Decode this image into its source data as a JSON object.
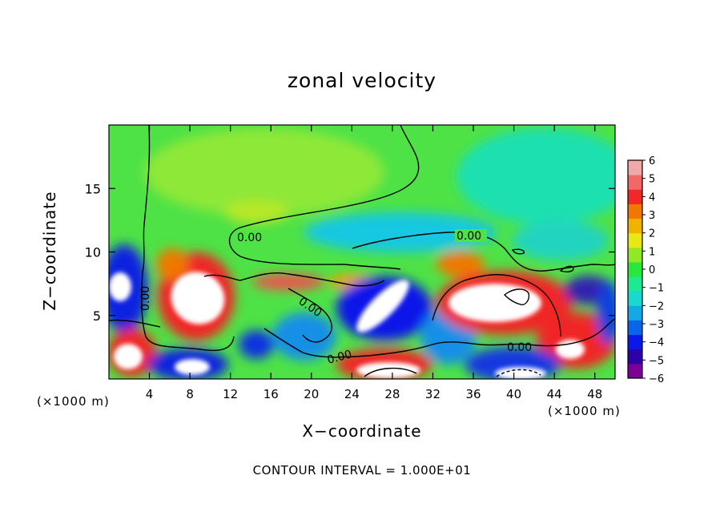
{
  "chart_data": {
    "type": "heatmap",
    "title": "zonal velocity",
    "xlabel": "X−coordinate",
    "ylabel": "Z−coordinate",
    "x_unit_left": "(×1000 m)",
    "x_unit_right": "(×1000 m)",
    "xlim": [
      0,
      50
    ],
    "ylim": [
      0,
      20
    ],
    "x_ticks": [
      4,
      8,
      12,
      16,
      20,
      24,
      28,
      32,
      36,
      40,
      44,
      48
    ],
    "y_ticks": [
      5,
      10,
      15
    ],
    "colorbar": {
      "ticks": [
        "6",
        "5",
        "4",
        "3",
        "2",
        "1",
        "0",
        "−1",
        "−2",
        "−3",
        "−4",
        "−5",
        "−6"
      ],
      "range": [
        -6,
        6
      ],
      "colors": [
        "#7b0098",
        "#2d00a8",
        "#0a18e8",
        "#0a64e8",
        "#14a8e6",
        "#18d8d0",
        "#1ee890",
        "#28e840",
        "#90e828",
        "#e8e814",
        "#f0b400",
        "#f07800",
        "#f02828",
        "#f06868",
        "#f0a8a8"
      ]
    },
    "contour_labels": [
      "0.00",
      "0.00",
      "0.00",
      "0.00",
      "0.00"
    ],
    "footer": "CONTOUR INTERVAL = 1.000E+01"
  }
}
